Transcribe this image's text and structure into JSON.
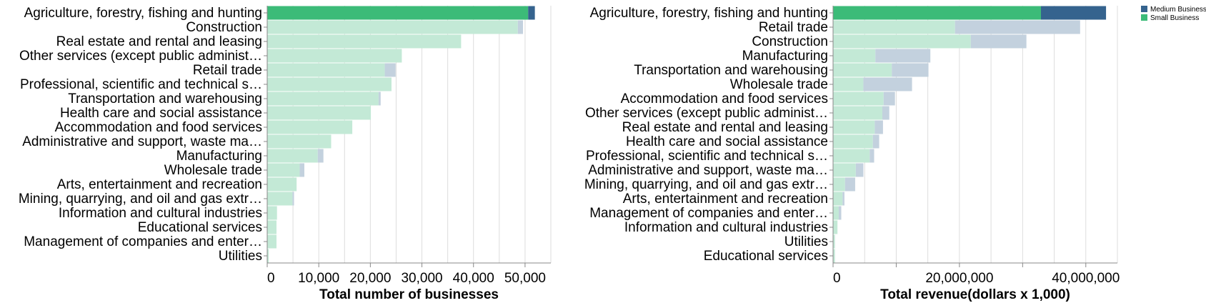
{
  "colors": {
    "medium_highlight": "#35638e",
    "small_highlight": "#3cbb78",
    "medium_muted": "#c3d1de",
    "small_muted": "#c3e9d6",
    "grid": "#dddddd",
    "axis": "#888888"
  },
  "legend": {
    "placement": "top-right",
    "items": [
      {
        "label": "Medium Business",
        "color": "#35638e"
      },
      {
        "label": "Small Business",
        "color": "#3cbb78"
      }
    ]
  },
  "chart_data": [
    {
      "type": "bar",
      "orientation": "horizontal",
      "stacked": true,
      "highlighted_category": "Agriculture, forestry, fishing and hunting",
      "xlabel": "Total number of businesses",
      "ylabel": "",
      "xlim": [
        0,
        55000
      ],
      "xticks": [
        0,
        10000,
        20000,
        30000,
        40000,
        50000
      ],
      "xtick_labels": [
        "0",
        "10,000",
        "20,000",
        "30,000",
        "40,000",
        "50,000"
      ],
      "grid": true,
      "categories": [
        "Agriculture, forestry, fishing and hunting",
        "Construction",
        "Real estate and rental and leasing",
        "Other services (except public administ…",
        "Retail trade",
        "Professional, scientific and technical s…",
        "Transportation and warehousing",
        "Health care and social assistance",
        "Accommodation and food services",
        "Administrative and support, waste ma…",
        "Manufacturing",
        "Wholesale trade",
        "Arts, entertainment and recreation",
        "Mining, quarrying, and oil and gas extr…",
        "Information and cultural industries",
        "Educational services",
        "Management of companies and enter…",
        "Utilities"
      ],
      "series": [
        {
          "name": "Small Business",
          "values": [
            50600,
            48600,
            37600,
            26100,
            22800,
            24100,
            21600,
            20100,
            16500,
            12400,
            9800,
            6300,
            5700,
            4900,
            1900,
            1800,
            1800,
            300
          ]
        },
        {
          "name": "Medium Business",
          "values": [
            1300,
            1000,
            0,
            0,
            2100,
            0,
            400,
            0,
            0,
            0,
            1100,
            900,
            0,
            300,
            0,
            0,
            0,
            0
          ]
        }
      ]
    },
    {
      "type": "bar",
      "orientation": "horizontal",
      "stacked": true,
      "highlighted_category": "Agriculture, forestry, fishing and hunting",
      "xlabel": "Total revenue(dollars x 1,000)",
      "ylabel": "",
      "xlim": [
        0,
        45000000
      ],
      "xticks": [
        0,
        20000000,
        40000000
      ],
      "xtick_labels": [
        "0",
        "20,000,000",
        "40,000,000"
      ],
      "grid": true,
      "categories": [
        "Agriculture, forestry, fishing and hunting",
        "Retail trade",
        "Construction",
        "Manufacturing",
        "Transportation and warehousing",
        "Wholesale trade",
        "Accommodation and food services",
        "Other services (except public administ…",
        "Real estate and rental and leasing",
        "Health care and social assistance",
        "Professional, scientific and technical s…",
        "Administrative and support, waste ma…",
        "Mining, quarrying, and oil and gas extr…",
        "Arts, entertainment and recreation",
        "Management of companies and enter…",
        "Information and cultural industries",
        "Utilities",
        "Educational services"
      ],
      "series": [
        {
          "name": "Small Business",
          "values": [
            32900000,
            19300000,
            21800000,
            6700000,
            9300000,
            4800000,
            8000000,
            7800000,
            6600000,
            6300000,
            5800000,
            3600000,
            1900000,
            1500000,
            900000,
            700000,
            300000,
            300000
          ]
        },
        {
          "name": "Medium Business",
          "values": [
            10300000,
            19800000,
            8800000,
            8700000,
            5800000,
            7700000,
            1800000,
            1100000,
            1300000,
            1000000,
            700000,
            1200000,
            1600000,
            300000,
            400000,
            0,
            0,
            0
          ]
        }
      ]
    }
  ]
}
